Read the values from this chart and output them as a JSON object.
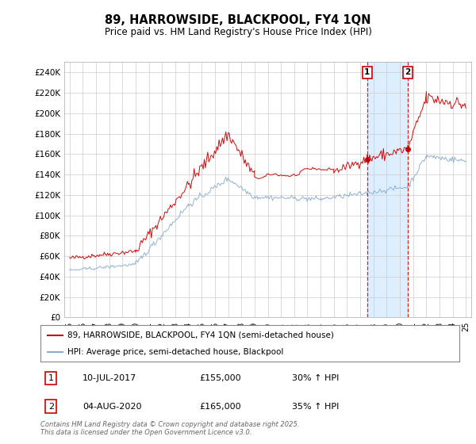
{
  "title": "89, HARROWSIDE, BLACKPOOL, FY4 1QN",
  "subtitle": "Price paid vs. HM Land Registry's House Price Index (HPI)",
  "ylim": [
    0,
    250000
  ],
  "yticks": [
    0,
    20000,
    40000,
    60000,
    80000,
    100000,
    120000,
    140000,
    160000,
    180000,
    200000,
    220000,
    240000
  ],
  "ytick_labels": [
    "£0",
    "£20K",
    "£40K",
    "£60K",
    "£80K",
    "£100K",
    "£120K",
    "£140K",
    "£160K",
    "£180K",
    "£200K",
    "£220K",
    "£240K"
  ],
  "red_color": "#cc0000",
  "blue_color": "#88aacc",
  "shade_color": "#ddeeff",
  "marker1_year": 2017.53,
  "marker2_year": 2020.59,
  "marker1_price": 155000,
  "marker2_price": 165000,
  "legend_label_red": "89, HARROWSIDE, BLACKPOOL, FY4 1QN (semi-detached house)",
  "legend_label_blue": "HPI: Average price, semi-detached house, Blackpool",
  "annotation1_date": "10-JUL-2017",
  "annotation1_price_str": "£155,000",
  "annotation1_hpi": "30% ↑ HPI",
  "annotation2_date": "04-AUG-2020",
  "annotation2_price_str": "£165,000",
  "annotation2_hpi": "35% ↑ HPI",
  "footer": "Contains HM Land Registry data © Crown copyright and database right 2025.\nThis data is licensed under the Open Government Licence v3.0.",
  "background_color": "#ffffff",
  "grid_color": "#cccccc"
}
